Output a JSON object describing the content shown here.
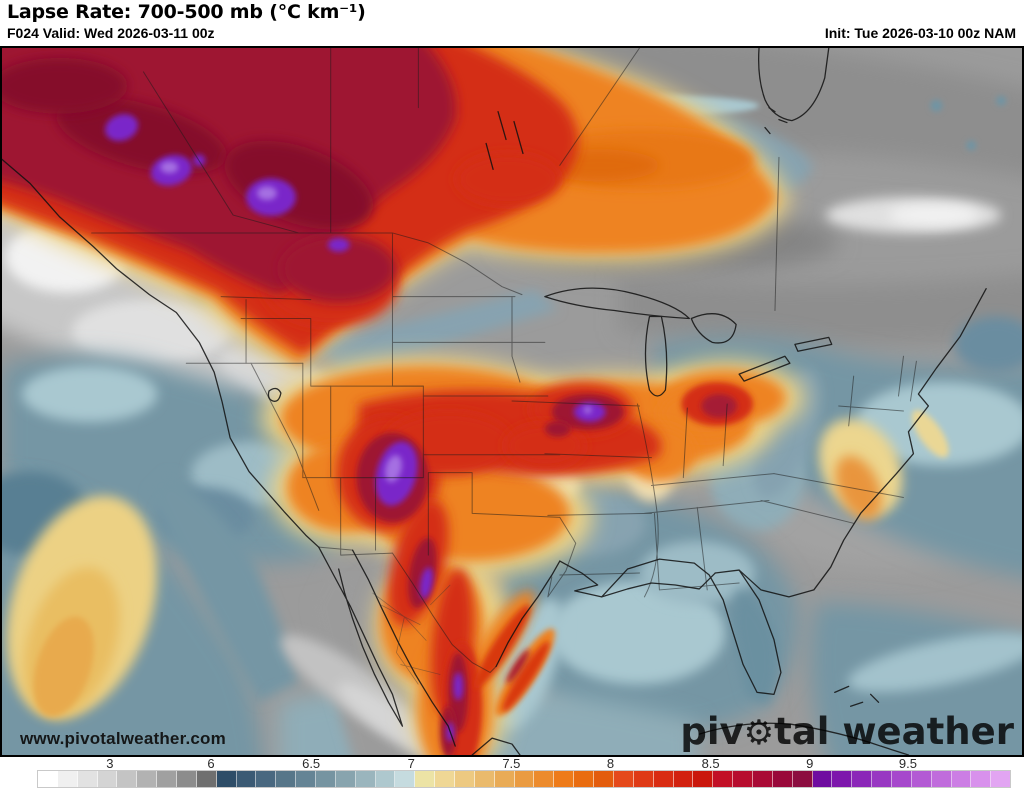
{
  "header": {
    "title": "Lapse Rate: 700-500 mb (°C km⁻¹)",
    "valid": "F024 Valid: Wed 2026-03-11 00z",
    "init": "Init: Tue 2026-03-10 00z NAM"
  },
  "map": {
    "watermark": "www.pivotalweather.com",
    "logo_pre": "piv",
    "logo_gear": "⚙",
    "logo_post": "tal weather",
    "palette": {
      "base": "#9b9b9b",
      "grayband": "#8e8e8e",
      "graydark": "#848484",
      "graylight": "#c7c7c7",
      "graylighter": "#e0e0e0",
      "white": "#f2f2f2",
      "blue": "#7596a4",
      "bluedark": "#587f93",
      "bluemid": "#8fadb8",
      "bluesoft": "#87a3b0",
      "bluepale": "#a9c8d0",
      "cream": "#f2e4ae",
      "paleyellow": "#eedda6",
      "yellow": "#ecd184",
      "halo": "#ecd387",
      "gold": "#e9be62",
      "amber": "#e8aa4e",
      "orange": "#ee8322",
      "orangedeep": "#e87814",
      "orangedark": "#e06a10",
      "orangeatl": "#e9953d",
      "red": "#d42f12",
      "maroon": "#9e1431",
      "maroondark": "#85102c",
      "maroonlight": "#a51a35",
      "purple": "#7a27c9",
      "purplelight": "#a570e2"
    }
  },
  "colorbar": {
    "segments": [
      "#ffffff",
      "#f0f0f0",
      "#e2e2e2",
      "#d4d4d4",
      "#c4c4c4",
      "#b2b2b2",
      "#a0a0a0",
      "#8c8c8c",
      "#6f6f6f",
      "#2e4d68",
      "#3b5a74",
      "#496880",
      "#577689",
      "#658495",
      "#7694a1",
      "#88a4ae",
      "#9ab5bd",
      "#aec8ce",
      "#c5dbdf",
      "#ece3a5",
      "#efd795",
      "#edc981",
      "#eaba6c",
      "#e9ab56",
      "#ea9b41",
      "#ec8b2d",
      "#ee7b19",
      "#e96c10",
      "#e35c0d",
      "#e5491b",
      "#df3a16",
      "#d92c12",
      "#d2210f",
      "#ca170c",
      "#c21026",
      "#b70d2e",
      "#a90a35",
      "#99083a",
      "#8c0d40",
      "#6f0ca0",
      "#7d17ac",
      "#8b27b8",
      "#9838c2",
      "#a648cc",
      "#b35ad4",
      "#c06cdc",
      "#cc7ee4",
      "#d891ec",
      "#e2a5f2"
    ],
    "ticks": [
      {
        "label": "3",
        "pos": 0.074
      },
      {
        "label": "6",
        "pos": 0.178
      },
      {
        "label": "6.5",
        "pos": 0.281
      },
      {
        "label": "7",
        "pos": 0.384
      },
      {
        "label": "7.5",
        "pos": 0.487
      },
      {
        "label": "8",
        "pos": 0.589
      },
      {
        "label": "8.5",
        "pos": 0.692
      },
      {
        "label": "9",
        "pos": 0.794
      },
      {
        "label": "9.5",
        "pos": 0.895
      }
    ]
  }
}
